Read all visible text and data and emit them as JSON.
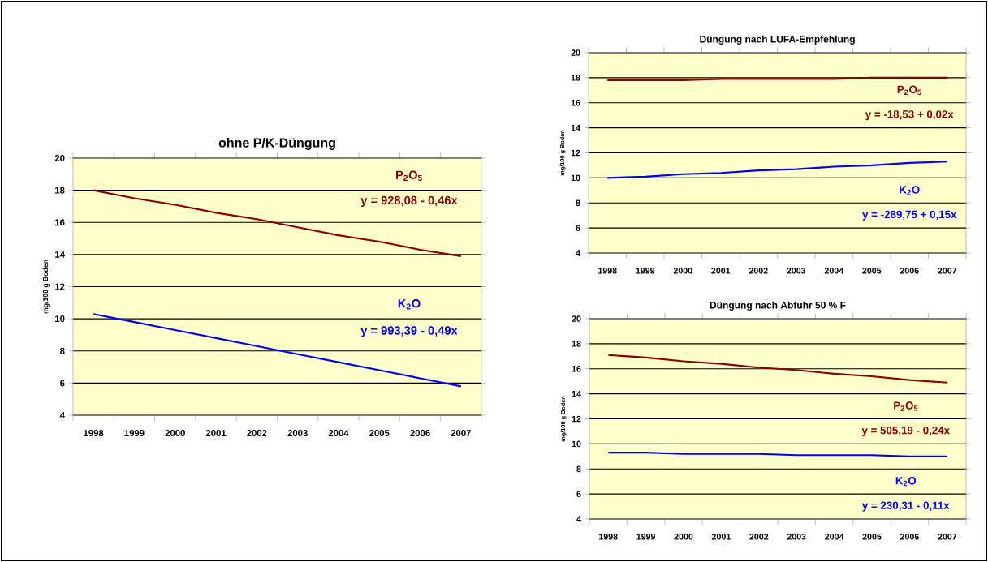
{
  "chart_data": [
    {
      "type": "line",
      "title": "ohne P/K-Düngung",
      "ylabel": "mg/100 g Boden",
      "categories": [
        "1998",
        "1999",
        "2000",
        "2001",
        "2002",
        "2003",
        "2004",
        "2005",
        "2006",
        "2007"
      ],
      "series": [
        {
          "name": "P$_{2}$O$_{5}$",
          "color": "#8b0000",
          "values": [
            18.0,
            17.5,
            17.1,
            16.6,
            16.2,
            15.7,
            15.2,
            14.8,
            14.3,
            13.9
          ]
        },
        {
          "name": "K$_{2}$O",
          "color": "#0000ff",
          "values": [
            10.3,
            9.8,
            9.3,
            8.8,
            8.3,
            7.8,
            7.3,
            6.8,
            6.3,
            5.8
          ]
        }
      ],
      "annotations": [
        "y = 928,08 - 0,46x",
        "y = 993,39 - 0,49x"
      ],
      "ylim": [
        4,
        20
      ],
      "yticks": [
        4,
        6,
        8,
        10,
        12,
        14,
        16,
        18,
        20
      ],
      "grid": "y"
    },
    {
      "type": "line",
      "title": "Düngung nach LUFA-Empfehlung",
      "ylabel": "mg/100 g Boden",
      "categories": [
        "1998",
        "1999",
        "2000",
        "2001",
        "2002",
        "2003",
        "2004",
        "2005",
        "2006",
        "2007"
      ],
      "series": [
        {
          "name": "P$_{2}$O$_{5}$",
          "color": "#8b0000",
          "values": [
            17.8,
            17.8,
            17.8,
            17.9,
            17.9,
            17.9,
            17.9,
            18.0,
            18.0,
            18.0
          ]
        },
        {
          "name": "K$_{2}$O",
          "color": "#0000ff",
          "values": [
            10.0,
            10.1,
            10.3,
            10.4,
            10.6,
            10.7,
            10.9,
            11.0,
            11.2,
            11.3
          ]
        }
      ],
      "annotations": [
        "y = -18,53 + 0,02x",
        "y = -289,75 + 0,15x"
      ],
      "ylim": [
        4,
        20
      ],
      "yticks": [
        4,
        6,
        8,
        10,
        12,
        14,
        16,
        18,
        20
      ],
      "grid": "y"
    },
    {
      "type": "line",
      "title": "Düngung nach Abfuhr 50 % F",
      "ylabel": "mg/100 g Boden",
      "categories": [
        "1998",
        "1999",
        "2000",
        "2001",
        "2002",
        "2003",
        "2004",
        "2005",
        "2006",
        "2007"
      ],
      "series": [
        {
          "name": "P$_{2}$O$_{5}$",
          "color": "#8b0000",
          "values": [
            17.1,
            16.9,
            16.6,
            16.4,
            16.1,
            15.9,
            15.6,
            15.4,
            15.1,
            14.9
          ]
        },
        {
          "name": "K$_{2}$O",
          "color": "#0000ff",
          "values": [
            9.3,
            9.3,
            9.2,
            9.2,
            9.2,
            9.1,
            9.1,
            9.1,
            9.0,
            9.0
          ]
        }
      ],
      "annotations": [
        "y = 505,19 - 0,24x",
        "y = 230,31 - 0,11x"
      ],
      "ylim": [
        4,
        20
      ],
      "yticks": [
        4,
        6,
        8,
        10,
        12,
        14,
        16,
        18,
        20
      ],
      "grid": "y"
    }
  ]
}
